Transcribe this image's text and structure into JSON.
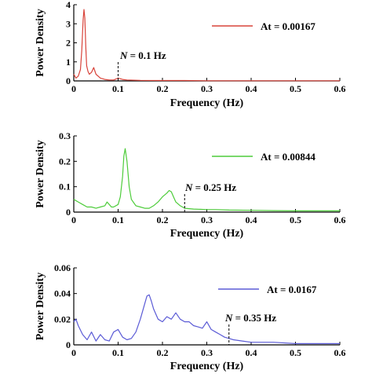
{
  "chart_data": [
    {
      "type": "line",
      "xlabel": "Frequency (Hz)",
      "ylabel": "Power Density",
      "xlim": [
        0,
        0.6
      ],
      "ylim": [
        0,
        4
      ],
      "xticks": [
        "0",
        "0.1",
        "0.2",
        "0.3",
        "0.4",
        "0.5",
        "0.6"
      ],
      "yticks": [
        "0",
        "1",
        "2",
        "3",
        "4"
      ],
      "color": "#d8433a",
      "series": [
        {
          "name": "At = 0.00167",
          "x": [
            0,
            0.005,
            0.01,
            0.015,
            0.018,
            0.021,
            0.023,
            0.025,
            0.027,
            0.029,
            0.032,
            0.035,
            0.04,
            0.045,
            0.05,
            0.06,
            0.07,
            0.08,
            0.09,
            0.1,
            0.11,
            0.12,
            0.15,
            0.2,
            0.25,
            0.3,
            0.35,
            0.4,
            0.45,
            0.5,
            0.55,
            0.6
          ],
          "y": [
            0.35,
            0.15,
            0.25,
            0.6,
            1.6,
            3.2,
            3.75,
            3.3,
            1.8,
            0.8,
            0.5,
            0.35,
            0.45,
            0.7,
            0.35,
            0.15,
            0.08,
            0.05,
            0.05,
            0.15,
            0.08,
            0.05,
            0.03,
            0.02,
            0.02,
            0.01,
            0.01,
            0.01,
            0.01,
            0.01,
            0.01,
            0.01
          ]
        }
      ],
      "annotation": {
        "label": "N",
        "text": "= 0.1 Hz",
        "x": 0.1
      }
    },
    {
      "type": "line",
      "xlabel": "Frequency (Hz)",
      "ylabel": "Power Density",
      "xlim": [
        0,
        0.6
      ],
      "ylim": [
        0,
        0.3
      ],
      "xticks": [
        "0",
        "0.1",
        "0.2",
        "0.3",
        "0.4",
        "0.5",
        "0.6"
      ],
      "yticks": [
        "0",
        "0.1",
        "0.2",
        "0.3"
      ],
      "color": "#4dcc3a",
      "series": [
        {
          "name": "At = 0.00844",
          "x": [
            0,
            0.01,
            0.02,
            0.03,
            0.04,
            0.05,
            0.06,
            0.07,
            0.075,
            0.08,
            0.085,
            0.09,
            0.1,
            0.105,
            0.11,
            0.113,
            0.116,
            0.12,
            0.125,
            0.13,
            0.14,
            0.15,
            0.16,
            0.17,
            0.18,
            0.19,
            0.2,
            0.21,
            0.215,
            0.22,
            0.225,
            0.23,
            0.24,
            0.25,
            0.27,
            0.3,
            0.32,
            0.35,
            0.4,
            0.45,
            0.5,
            0.55,
            0.6
          ],
          "y": [
            0.05,
            0.04,
            0.03,
            0.02,
            0.02,
            0.015,
            0.02,
            0.025,
            0.04,
            0.03,
            0.02,
            0.02,
            0.03,
            0.06,
            0.14,
            0.22,
            0.25,
            0.2,
            0.1,
            0.05,
            0.025,
            0.02,
            0.015,
            0.015,
            0.025,
            0.04,
            0.06,
            0.075,
            0.085,
            0.08,
            0.06,
            0.04,
            0.025,
            0.015,
            0.012,
            0.01,
            0.01,
            0.008,
            0.007,
            0.006,
            0.005,
            0.005,
            0.005
          ]
        }
      ],
      "annotation": {
        "label": "N",
        "text": "= 0.25 Hz",
        "x": 0.25
      }
    },
    {
      "type": "line",
      "xlabel": "Frequency (Hz)",
      "ylabel": "Power Density",
      "xlim": [
        0,
        0.6
      ],
      "ylim": [
        0,
        0.06
      ],
      "xticks": [
        "0",
        "0.1",
        "0.2",
        "0.3",
        "0.4",
        "0.5",
        "0.6"
      ],
      "yticks": [
        "0",
        "0.02",
        "0.04",
        "0.06"
      ],
      "color": "#5b5bd6",
      "series": [
        {
          "name": "At = 0.0167",
          "x": [
            0,
            0.005,
            0.01,
            0.02,
            0.03,
            0.04,
            0.05,
            0.06,
            0.07,
            0.08,
            0.09,
            0.1,
            0.11,
            0.12,
            0.13,
            0.14,
            0.15,
            0.16,
            0.165,
            0.17,
            0.175,
            0.18,
            0.19,
            0.2,
            0.21,
            0.22,
            0.23,
            0.24,
            0.25,
            0.26,
            0.27,
            0.28,
            0.29,
            0.3,
            0.31,
            0.32,
            0.33,
            0.34,
            0.35,
            0.36,
            0.38,
            0.4,
            0.45,
            0.5,
            0.55,
            0.6
          ],
          "y": [
            0.018,
            0.02,
            0.015,
            0.008,
            0.004,
            0.01,
            0.003,
            0.008,
            0.004,
            0.003,
            0.01,
            0.012,
            0.006,
            0.004,
            0.005,
            0.01,
            0.02,
            0.032,
            0.038,
            0.039,
            0.034,
            0.028,
            0.02,
            0.018,
            0.022,
            0.02,
            0.025,
            0.02,
            0.018,
            0.018,
            0.015,
            0.014,
            0.013,
            0.018,
            0.012,
            0.01,
            0.008,
            0.006,
            0.005,
            0.004,
            0.003,
            0.002,
            0.002,
            0.001,
            0.001,
            0.001
          ]
        }
      ],
      "annotation": {
        "label": "N",
        "text": "= 0.35 Hz",
        "x": 0.35
      }
    }
  ]
}
